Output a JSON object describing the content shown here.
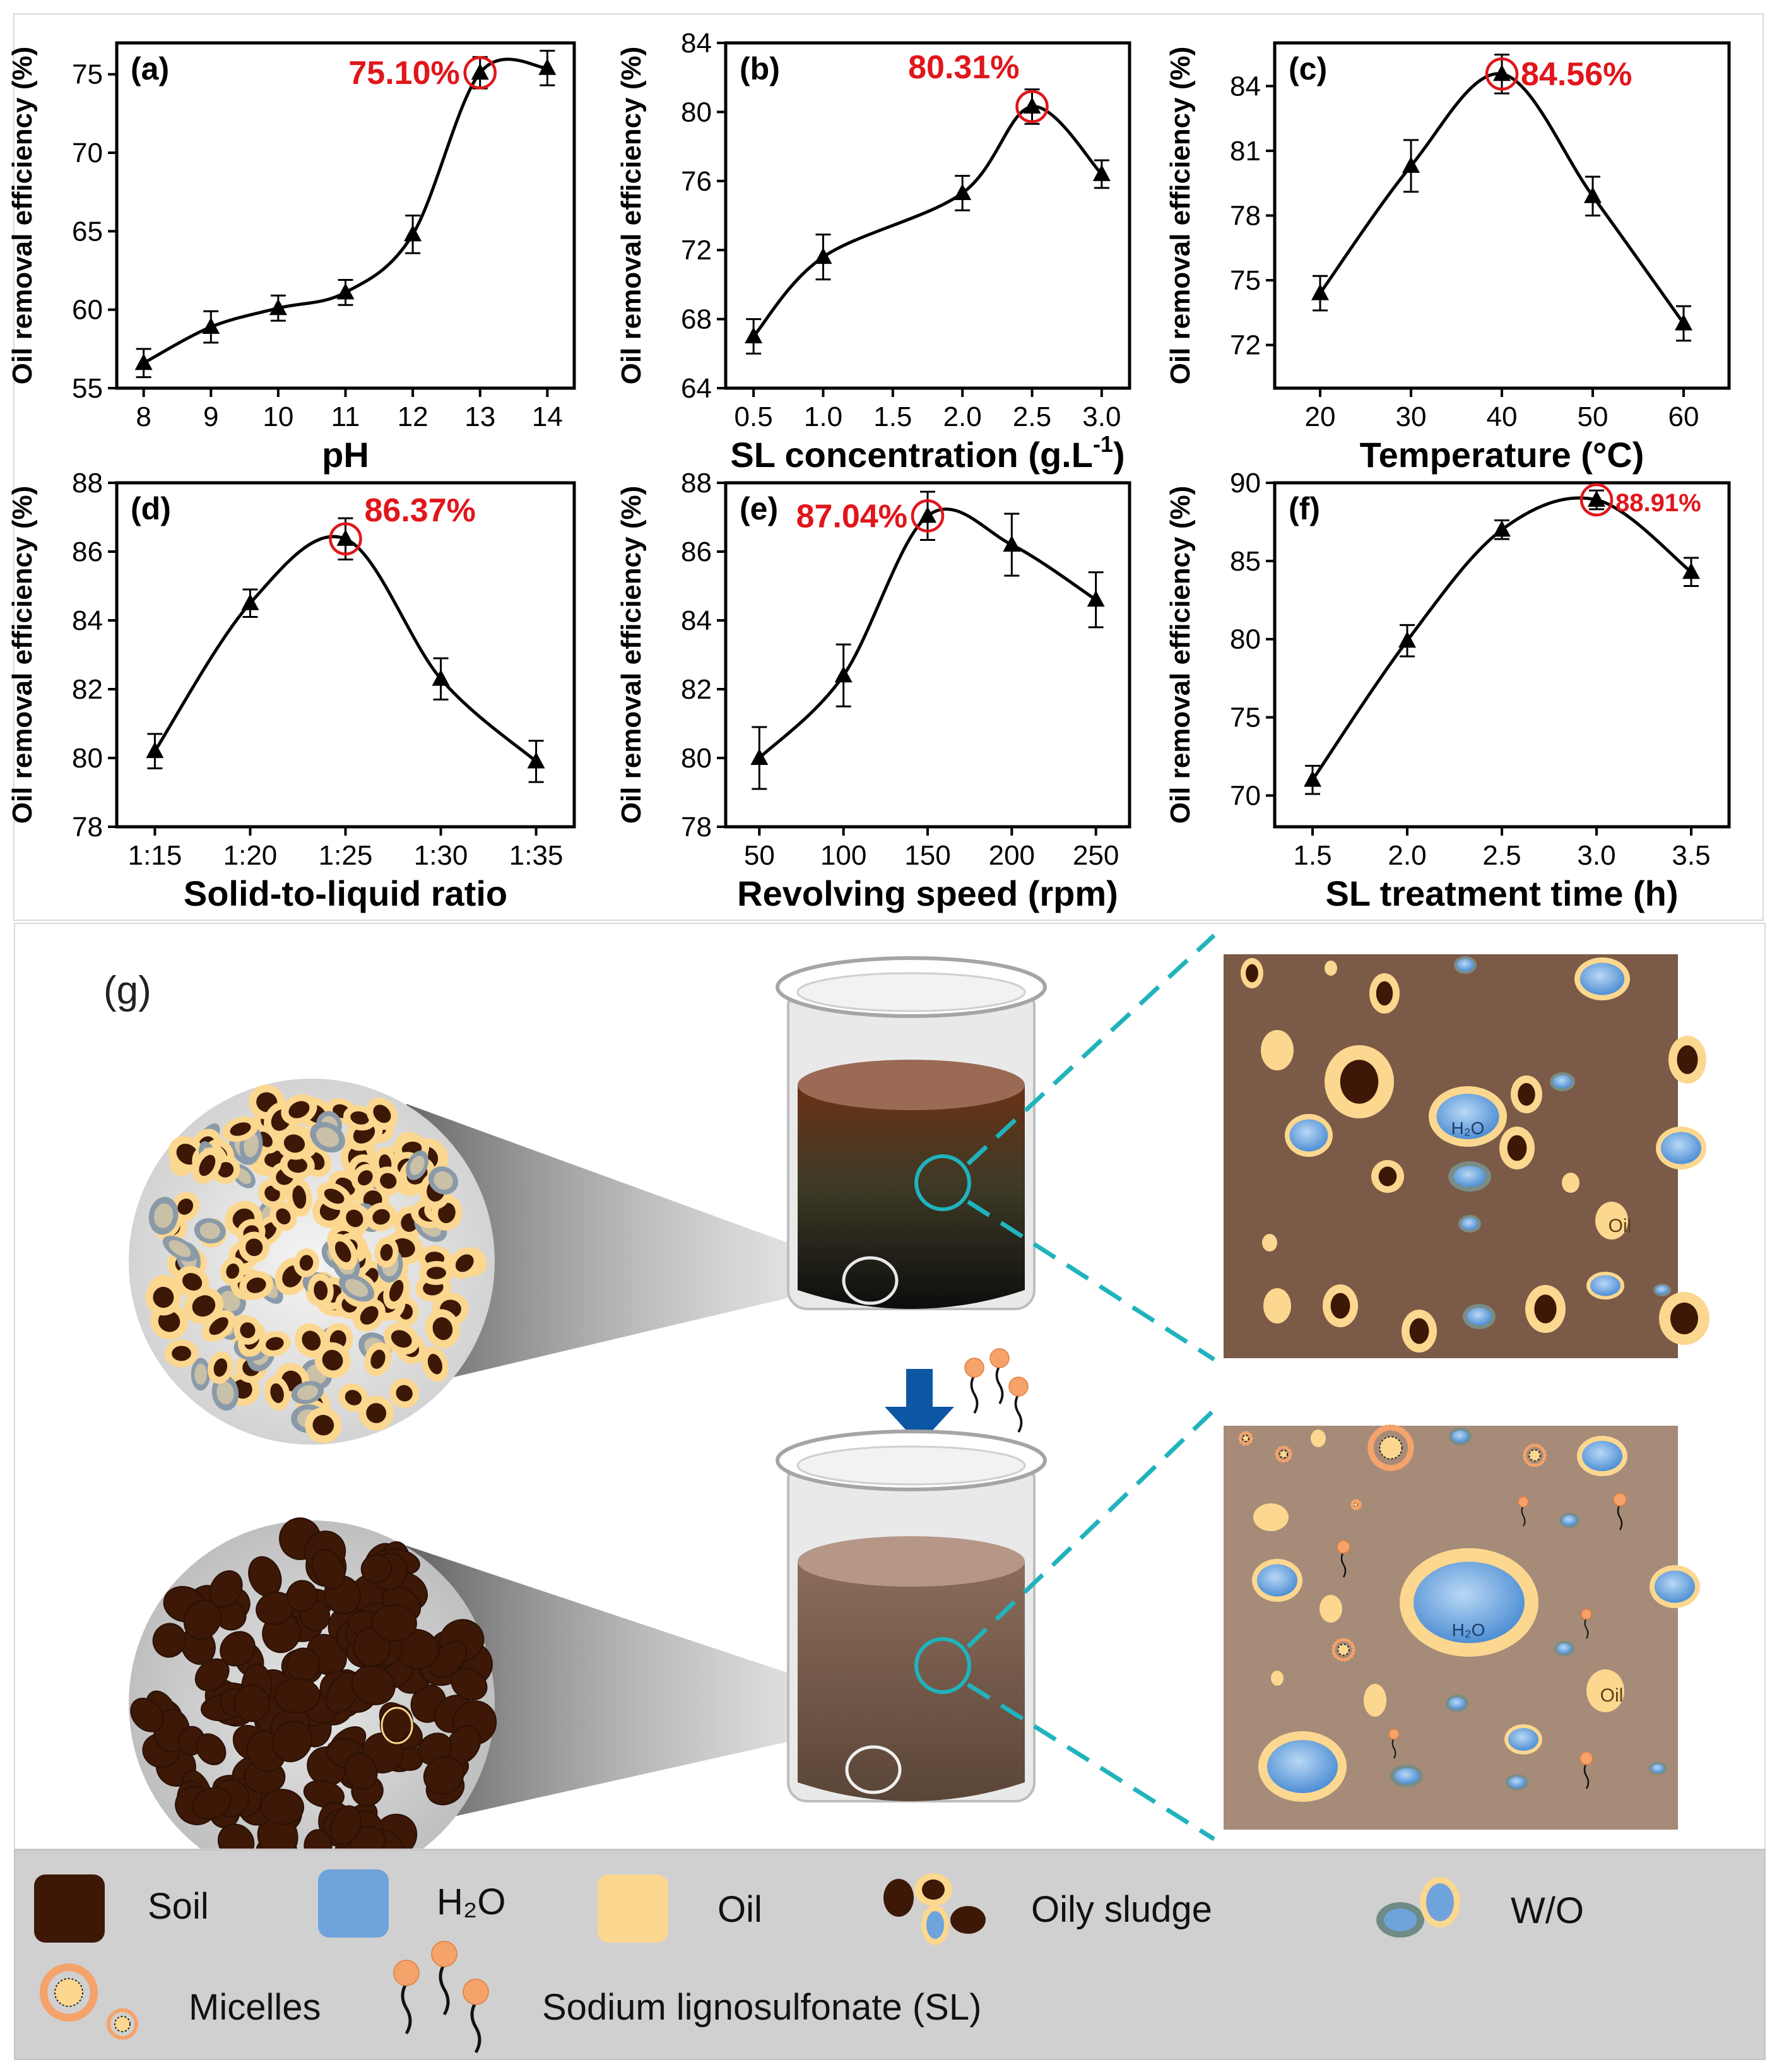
{
  "chart_data": [
    {
      "id": "a",
      "panel_label": "(a)",
      "type": "line",
      "xlabel": "pH",
      "ylabel": "Oil removal efficiency (%)",
      "x": [
        8,
        9,
        10,
        11,
        12,
        13,
        14
      ],
      "x_ticks": [
        "8",
        "9",
        "10",
        "11",
        "12",
        "13",
        "14"
      ],
      "xlim": [
        7.6,
        14.4
      ],
      "y": [
        56.6,
        58.9,
        60.1,
        61.1,
        64.8,
        75.1,
        75.4
      ],
      "yerr": [
        0.9,
        1.0,
        0.8,
        0.8,
        1.2,
        1.0,
        1.1
      ],
      "ylim": [
        55,
        77
      ],
      "yticks": [
        55,
        60,
        65,
        70,
        75
      ],
      "highlight": {
        "index": 5,
        "label": "75.10%",
        "label_side": "left"
      },
      "marker": "triangle",
      "grid": false
    },
    {
      "id": "b",
      "panel_label": "(b)",
      "type": "line",
      "xlabel": "SL concentration (g.L",
      "xlabel_sup": "-1",
      "xlabel_end": ")",
      "ylabel": "Oil removal efficiency (%)",
      "x": [
        0.5,
        1.0,
        2.0,
        2.5,
        3.0
      ],
      "x_ticks": [
        "0.5",
        "1.0",
        "1.5",
        "2.0",
        "2.5",
        "3.0"
      ],
      "x_tick_values": [
        0.5,
        1.0,
        1.5,
        2.0,
        2.5,
        3.0
      ],
      "xlim": [
        0.3,
        3.2
      ],
      "y": [
        67.0,
        71.6,
        75.3,
        80.31,
        76.4
      ],
      "yerr": [
        1.0,
        1.3,
        1.0,
        1.0,
        0.8
      ],
      "ylim": [
        64,
        84
      ],
      "yticks": [
        64,
        68,
        72,
        76,
        80,
        84
      ],
      "highlight": {
        "index": 3,
        "label": "80.31%",
        "label_side": "above-left"
      },
      "marker": "triangle",
      "grid": false
    },
    {
      "id": "c",
      "panel_label": "(c)",
      "type": "line",
      "xlabel": "Temperature (°C)",
      "ylabel": "Oil removal efficiency (%)",
      "x": [
        20,
        30,
        40,
        50,
        60
      ],
      "x_ticks": [
        "20",
        "30",
        "40",
        "50",
        "60"
      ],
      "xlim": [
        15,
        65
      ],
      "y": [
        74.4,
        80.3,
        84.56,
        78.9,
        73.0
      ],
      "yerr": [
        0.8,
        1.2,
        0.9,
        0.9,
        0.8
      ],
      "ylim": [
        70,
        86
      ],
      "yticks": [
        72,
        75,
        78,
        81,
        84
      ],
      "highlight": {
        "index": 2,
        "label": "84.56%",
        "label_side": "right"
      },
      "marker": "triangle",
      "grid": false
    },
    {
      "id": "d",
      "panel_label": "(d)",
      "type": "line",
      "xlabel": "Solid-to-liquid ratio",
      "ylabel": "Oil removal efficiency (%)",
      "x": [
        1,
        2,
        3,
        4,
        5
      ],
      "x_ticks": [
        "1:15",
        "1:20",
        "1:25",
        "1:30",
        "1:35"
      ],
      "xlim": [
        0.6,
        5.4
      ],
      "y": [
        80.2,
        84.5,
        86.37,
        82.3,
        79.9
      ],
      "yerr": [
        0.5,
        0.4,
        0.6,
        0.6,
        0.6
      ],
      "ylim": [
        78,
        88
      ],
      "yticks": [
        78,
        80,
        82,
        84,
        86,
        88
      ],
      "highlight": {
        "index": 2,
        "label": "86.37%",
        "label_side": "above-right"
      },
      "marker": "triangle",
      "grid": false
    },
    {
      "id": "e",
      "panel_label": "(e)",
      "type": "line",
      "xlabel": "Revolving speed (rpm)",
      "ylabel": "Oil removal efficiency (%)",
      "x": [
        50,
        100,
        150,
        200,
        250
      ],
      "x_ticks": [
        "50",
        "100",
        "150",
        "200",
        "250"
      ],
      "xlim": [
        30,
        270
      ],
      "y": [
        80.0,
        82.4,
        87.04,
        86.2,
        84.6
      ],
      "yerr": [
        0.9,
        0.9,
        0.7,
        0.9,
        0.8
      ],
      "ylim": [
        78,
        88
      ],
      "yticks": [
        78,
        80,
        82,
        84,
        86,
        88
      ],
      "highlight": {
        "index": 2,
        "label": "87.04%",
        "label_side": "left"
      },
      "marker": "triangle",
      "grid": false
    },
    {
      "id": "f",
      "panel_label": "(f)",
      "type": "line",
      "xlabel": "SL treatment time (h)",
      "ylabel": "Oil removal efficiency (%)",
      "x": [
        1.5,
        2.0,
        2.5,
        3.0,
        3.5
      ],
      "x_ticks": [
        "1.5",
        "2.0",
        "2.5",
        "3.0",
        "3.5"
      ],
      "xlim": [
        1.3,
        3.7
      ],
      "y": [
        71.0,
        79.9,
        87.0,
        88.91,
        84.3
      ],
      "yerr": [
        0.9,
        1.0,
        0.6,
        0.6,
        0.9
      ],
      "ylim": [
        68,
        90
      ],
      "yticks": [
        70,
        75,
        80,
        85,
        90
      ],
      "highlight": {
        "index": 3,
        "label": "88.91%",
        "label_side": "right",
        "small": true
      },
      "marker": "triangle",
      "grid": false
    }
  ],
  "panel_g": {
    "label": "(g)",
    "h2o_label_top": "H₂O",
    "oil_label_top": "Oil",
    "h2o_label_bottom": "H₂O",
    "oil_label_bottom": "Oil"
  },
  "legend": {
    "soil": "Soil",
    "h2o": "H₂O",
    "oil": "Oil",
    "oily_sludge": "Oily sludge",
    "wo": "W/O",
    "micelles": "Micelles",
    "sl": "Sodium lignosulfonate (SL)"
  },
  "colors": {
    "soil": "#3d1806",
    "water": "#6fa3dc",
    "oil": "#fcd78f",
    "highlight": "#e0161b",
    "teal": "#1fb3bd",
    "arrow": "#0c56a3",
    "bg_top": "#7b5a47",
    "bg_bottom": "#a58b78"
  }
}
